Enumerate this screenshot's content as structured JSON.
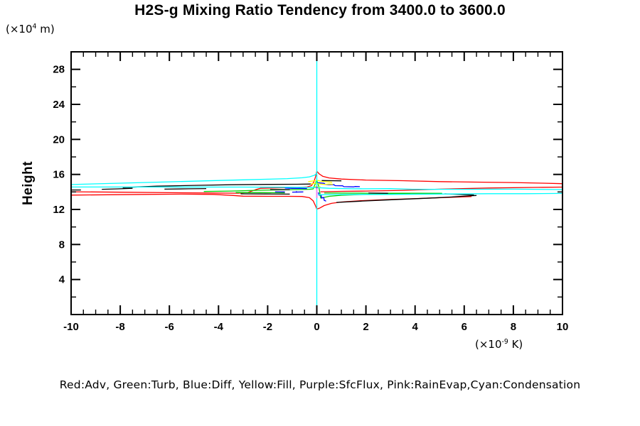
{
  "title": "H2S-g Mixing Ratio Tendency from 3400.0 to 3600.0",
  "labels": {
    "y_axis": "Height",
    "y_unit": {
      "pre": "(×10",
      "sup": "4",
      "post": " m)"
    },
    "x_unit": {
      "pre": "(×10",
      "sup": "-9",
      "post": " K)"
    }
  },
  "legend": {
    "text": "Red:Adv, Green:Turb, Blue:Diff, Yellow:Fill, Purple:SfcFlux, Pink:RainEvap,Cyan:Condensation"
  },
  "chart_data": {
    "type": "line",
    "title": "H2S-g Mixing Ratio Tendency from 3400.0 to 3600.0",
    "xlabel": "(x10^-9 K)",
    "ylabel": "Height (x10^4 m)",
    "xlim": [
      -10,
      10
    ],
    "ylim": [
      0,
      30
    ],
    "grid": false,
    "legend_position": "bottom",
    "x_major_ticks": [
      -10,
      -8,
      -6,
      -4,
      -2,
      0,
      2,
      4,
      6,
      8,
      10
    ],
    "x_major_labels": [
      "-10",
      "-8",
      "-6",
      "-4",
      "-2",
      "0",
      "2",
      "4",
      "6",
      "8",
      "10"
    ],
    "x_minor_step": 0.5,
    "y_major_ticks": [
      4,
      8,
      12,
      16,
      20,
      24,
      28
    ],
    "y_major_labels": [
      "4",
      "8",
      "12",
      "16",
      "20",
      "24",
      "28"
    ],
    "y_minor_step": 2,
    "colors": {
      "adv": "#ff0000",
      "turb": "#00cc00",
      "diff": "#0000ff",
      "fill": "#ffff00",
      "sfcflux": "#9932cc",
      "rainevap": "#ee82ee",
      "condensation": "#00ffff",
      "total": "#000000",
      "axis": "#000000"
    },
    "series": [
      {
        "name": "Adv",
        "color": "#ff0000",
        "lines": [
          [
            [
              -10,
              14.02
            ],
            [
              -8,
              13.97
            ],
            [
              -6,
              13.91
            ],
            [
              -4.5,
              13.88
            ],
            [
              -3.2,
              13.86
            ],
            [
              -2.8,
              13.95
            ],
            [
              -2.5,
              14.25
            ],
            [
              -2.3,
              14.42
            ],
            [
              -1.5,
              14.47
            ],
            [
              -0.8,
              14.5
            ],
            [
              -0.4,
              14.56
            ],
            [
              -0.22,
              14.72
            ],
            [
              -0.12,
              15.15
            ],
            [
              -0.05,
              15.75
            ],
            [
              0,
              16.35
            ],
            [
              0.1,
              16.05
            ],
            [
              0.25,
              15.78
            ],
            [
              0.5,
              15.6
            ],
            [
              1,
              15.47
            ],
            [
              2,
              15.36
            ],
            [
              3.5,
              15.28
            ],
            [
              5,
              15.18
            ],
            [
              6.5,
              15.12
            ],
            [
              8,
              15.07
            ],
            [
              9.2,
              15.0
            ],
            [
              10,
              14.94
            ]
          ],
          [
            [
              -10,
              13.64
            ],
            [
              -8.5,
              13.68
            ],
            [
              -7,
              13.72
            ],
            [
              -5.5,
              13.75
            ],
            [
              -4.2,
              13.72
            ],
            [
              -3.4,
              13.6
            ],
            [
              -3,
              13.52
            ],
            [
              -2,
              13.5
            ],
            [
              -1.2,
              13.5
            ],
            [
              -0.6,
              13.48
            ],
            [
              -0.3,
              13.35
            ],
            [
              -0.15,
              13.0
            ],
            [
              -0.05,
              12.4
            ],
            [
              0,
              12.05
            ],
            [
              0.12,
              12.15
            ],
            [
              0.3,
              12.45
            ],
            [
              0.6,
              12.7
            ],
            [
              1,
              12.85
            ],
            [
              1.8,
              13.0
            ],
            [
              2.8,
              13.12
            ],
            [
              3.8,
              13.22
            ],
            [
              4.8,
              13.32
            ],
            [
              5.6,
              13.4
            ],
            [
              6.3,
              13.47
            ]
          ],
          [
            [
              0.15,
              14.02
            ],
            [
              1,
              14.07
            ],
            [
              2,
              14.1
            ],
            [
              3.5,
              14.18
            ],
            [
              5,
              14.32
            ],
            [
              7,
              14.45
            ],
            [
              9,
              14.52
            ],
            [
              10,
              14.55
            ]
          ]
        ]
      },
      {
        "name": "Turb",
        "color": "#00cc00",
        "lines": [
          [
            [
              -4.6,
              14.05
            ],
            [
              -3.5,
              14.1
            ],
            [
              -2.5,
              14.18
            ],
            [
              -1.5,
              14.24
            ],
            [
              -0.7,
              14.27
            ],
            [
              -0.3,
              14.3
            ],
            [
              -0.15,
              14.34
            ],
            [
              -0.08,
              14.8
            ],
            [
              0,
              15.35
            ],
            [
              0.06,
              14.8
            ],
            [
              0.1,
              14.3
            ],
            [
              0.14,
              13.6
            ],
            [
              0.16,
              13.3
            ],
            [
              0.5,
              13.5
            ],
            [
              1,
              13.62
            ],
            [
              2,
              13.72
            ],
            [
              3,
              13.79
            ],
            [
              3.8,
              13.83
            ]
          ],
          [
            [
              -3.3,
              13.93
            ],
            [
              -2.2,
              13.92
            ],
            [
              -1.3,
              13.9
            ]
          ],
          [
            [
              0.3,
              13.87
            ],
            [
              2,
              13.86
            ],
            [
              4,
              13.85
            ],
            [
              5.1,
              13.84
            ]
          ]
        ]
      },
      {
        "name": "Diff",
        "color": "#0000ff",
        "lines": [
          [
            [
              0.05,
              15.05
            ],
            [
              0.3,
              14.98
            ],
            [
              0.35,
              14.85
            ],
            [
              0.7,
              14.82
            ],
            [
              0.75,
              14.72
            ],
            [
              1.05,
              14.7
            ],
            [
              1.1,
              14.6
            ],
            [
              1.5,
              14.58
            ],
            [
              1.55,
              14.62
            ],
            [
              1.75,
              14.6
            ]
          ],
          [
            [
              -1.7,
              14.02
            ],
            [
              -1.3,
              14.0
            ]
          ],
          [
            [
              -1.0,
              13.98
            ],
            [
              -0.55,
              14.0
            ]
          ],
          [
            [
              -0.83,
              14.08
            ],
            [
              -0.83,
              13.92
            ]
          ],
          [
            [
              -1.3,
              14.45
            ],
            [
              -1.0,
              14.4
            ],
            [
              -0.7,
              14.42
            ],
            [
              -0.4,
              14.38
            ]
          ],
          [
            [
              0.06,
              13.95
            ],
            [
              0.1,
              13.62
            ],
            [
              0.18,
              13.68
            ],
            [
              0.2,
              13.3
            ],
            [
              0.28,
              13.38
            ],
            [
              0.3,
              13.05
            ],
            [
              0.38,
              12.95
            ]
          ]
        ]
      },
      {
        "name": "Fill",
        "color": "#ffff00",
        "lines": [
          [
            [
              -0.35,
              15.18
            ],
            [
              -0.15,
              15.25
            ],
            [
              0.05,
              15.32
            ],
            [
              0.2,
              15.2
            ],
            [
              0.45,
              15.15
            ],
            [
              0.62,
              15.1
            ]
          ],
          [
            [
              -0.25,
              14.9
            ],
            [
              -0.05,
              15.0
            ],
            [
              0.1,
              14.92
            ],
            [
              0.3,
              14.85
            ],
            [
              0.5,
              14.9
            ],
            [
              0.65,
              14.86
            ]
          ],
          [
            [
              -0.1,
              14.62
            ],
            [
              0.05,
              14.55
            ],
            [
              0.15,
              14.6
            ]
          ]
        ]
      },
      {
        "name": "Total",
        "color": "#000000",
        "lines": [
          [
            [
              -10,
              14.22
            ],
            [
              -9.6,
              14.22
            ]
          ],
          [
            [
              -8.75,
              14.3
            ],
            [
              -8.1,
              14.35
            ],
            [
              -7.5,
              14.42
            ]
          ],
          [
            [
              -7.9,
              14.5
            ],
            [
              -6.5,
              14.66
            ],
            [
              -5,
              14.75
            ],
            [
              -3.5,
              14.82
            ],
            [
              -2,
              14.86
            ],
            [
              -0.8,
              14.88
            ],
            [
              -0.25,
              14.9
            ]
          ],
          [
            [
              -6.2,
              14.32
            ],
            [
              -5.2,
              14.36
            ],
            [
              -4.5,
              14.38
            ]
          ],
          [
            [
              -3.1,
              13.78
            ],
            [
              -2.1,
              13.77
            ],
            [
              -1.1,
              13.75
            ]
          ],
          [
            [
              -1.9,
              14.27
            ],
            [
              -1.1,
              14.26
            ]
          ],
          [
            [
              0.8,
              12.8
            ],
            [
              1.8,
              12.95
            ],
            [
              2.8,
              13.08
            ],
            [
              3.8,
              13.2
            ],
            [
              4.8,
              13.32
            ],
            [
              5.6,
              13.44
            ],
            [
              6.2,
              13.55
            ],
            [
              6.5,
              13.6
            ]
          ],
          [
            [
              2.1,
              13.87
            ],
            [
              2.9,
              13.85
            ]
          ],
          [
            [
              0.2,
              15.3
            ],
            [
              1.0,
              15.27
            ]
          ],
          [
            [
              5.2,
              13.78
            ],
            [
              5.9,
              13.7
            ],
            [
              6.4,
              13.65
            ]
          ]
        ]
      },
      {
        "name": "Condensation",
        "color": "#00ffff",
        "lines": [
          [
            [
              0,
              0
            ],
            [
              0,
              30
            ]
          ],
          [
            [
              -10,
              14.85
            ],
            [
              -8,
              15.0
            ],
            [
              -6,
              15.15
            ],
            [
              -4.5,
              15.27
            ],
            [
              -3,
              15.38
            ],
            [
              -2,
              15.45
            ],
            [
              -1.2,
              15.52
            ],
            [
              -0.6,
              15.62
            ],
            [
              -0.3,
              15.72
            ],
            [
              -0.1,
              15.9
            ],
            [
              0,
              16.1
            ]
          ],
          [
            [
              -10,
              14.56
            ],
            [
              -6,
              14.56
            ],
            [
              -3,
              14.55
            ],
            [
              -1,
              14.53
            ],
            [
              0,
              14.5
            ],
            [
              0.5,
              14.42
            ],
            [
              1.5,
              14.36
            ],
            [
              3,
              14.38
            ],
            [
              3.9,
              14.3
            ],
            [
              6,
              14.3
            ],
            [
              8,
              14.32
            ],
            [
              10,
              14.27
            ]
          ],
          [
            [
              0.05,
              13.68
            ],
            [
              1,
              13.7
            ],
            [
              3,
              13.72
            ],
            [
              5,
              13.76
            ],
            [
              7,
              13.8
            ],
            [
              8.5,
              13.8
            ],
            [
              10,
              13.83
            ]
          ]
        ]
      },
      {
        "name": "SfcFlux",
        "color": "#9932cc",
        "lines": [
          [
            [
              0,
              14.62
            ],
            [
              0,
              14.4
            ]
          ]
        ]
      },
      {
        "name": "RainEvap",
        "color": "#ee82ee",
        "lines": [
          [
            [
              0,
              14.4
            ],
            [
              0,
              13.3
            ]
          ]
        ]
      }
    ]
  }
}
